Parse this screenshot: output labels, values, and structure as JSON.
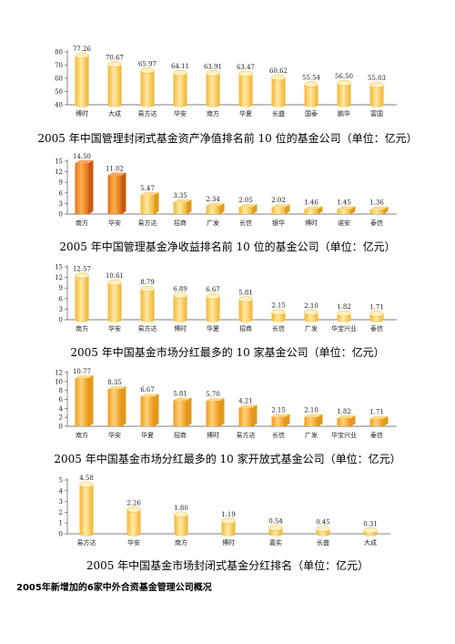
{
  "section_heading": "2005年新增加的6家中外合资基金管理公司概况",
  "chart_data": [
    {
      "type": "bar",
      "title": "2005 年中国管理封闭式基金资产净值排名前 10 位的基金公司（单位：亿元）",
      "categories": [
        "博时",
        "大成",
        "易方达",
        "华安",
        "南方",
        "华夏",
        "长盛",
        "国泰",
        "鹏华",
        "富国"
      ],
      "values": [
        77.26,
        70.67,
        65.97,
        64.11,
        63.91,
        63.47,
        60.62,
        55.54,
        56.5,
        55.03
      ],
      "value_labels": [
        "77.26",
        "70.67",
        "65.97",
        "64.11",
        "63.91",
        "63.47",
        "60.62",
        "55.54",
        "56.50",
        "55.03"
      ],
      "yticks": [
        40,
        50,
        60,
        70,
        80
      ],
      "ylim": [
        40,
        80
      ],
      "grid": false,
      "colors": {
        "bar": "#f7c64a"
      }
    },
    {
      "type": "bar",
      "title": "2005 年中国管理基金净收益排名前 10 位的基金公司（单位：亿元）",
      "categories": [
        "南方",
        "华安",
        "易方达",
        "招商",
        "广发",
        "长信",
        "银华",
        "博时",
        "诺安",
        "泰信"
      ],
      "values": [
        14.5,
        11.02,
        5.47,
        3.35,
        2.34,
        2.05,
        2.02,
        1.46,
        1.45,
        1.36
      ],
      "value_labels": [
        "14.50",
        "11.02",
        "5.47",
        "3.35",
        "2.34",
        "2.05",
        "2.02",
        "1.46",
        "1.45",
        "1.36"
      ],
      "yticks": [
        0,
        3,
        6,
        9,
        12,
        15
      ],
      "ylim": [
        0,
        15
      ],
      "grid": false,
      "colors": {
        "bar": "#f7c64a",
        "highlight": "#f08a1c"
      }
    },
    {
      "type": "bar",
      "title": "2005 年中国基金市场分红最多的 10 家基金公司（单位：亿元）",
      "categories": [
        "南方",
        "华安",
        "易方达",
        "博时",
        "华夏",
        "招商",
        "长信",
        "广发",
        "华宝兴业",
        "泰信"
      ],
      "values": [
        12.57,
        10.61,
        8.79,
        6.89,
        6.67,
        5.81,
        2.15,
        2.1,
        1.82,
        1.71
      ],
      "value_labels": [
        "12.57",
        "10.61",
        "8.79",
        "6.89",
        "6.67",
        "5.81",
        "2.15",
        "2.10",
        "1.82",
        "1.71"
      ],
      "yticks": [
        0,
        3,
        6,
        9,
        12,
        15
      ],
      "ylim": [
        0,
        15
      ],
      "grid": false,
      "colors": {
        "bar": "#f7c64a"
      }
    },
    {
      "type": "bar",
      "title": "2005 年中国基金市场分红最多的 10 家开放式基金公司（单位：亿元）",
      "categories": [
        "南方",
        "华安",
        "华夏",
        "招商",
        "博时",
        "易方达",
        "长信",
        "广发",
        "华宝兴业",
        "泰信"
      ],
      "values": [
        10.77,
        8.35,
        6.67,
        5.81,
        5.7,
        4.21,
        2.15,
        2.1,
        1.82,
        1.71
      ],
      "value_labels": [
        "10.77",
        "8.35",
        "6.67",
        "5.81",
        "5.70",
        "4.21",
        "2.15",
        "2.10",
        "1.82",
        "1.71"
      ],
      "yticks": [
        0,
        2,
        4,
        6,
        8,
        10,
        12
      ],
      "ylim": [
        0,
        12
      ],
      "grid": false,
      "colors": {
        "bar": "#f5a623"
      }
    },
    {
      "type": "bar",
      "title": "2005 年中国基金市场封闭式基金分红排名（单位：亿元）",
      "categories": [
        "易方达",
        "华安",
        "南方",
        "博时",
        "嘉实",
        "长盛",
        "大成"
      ],
      "values": [
        4.58,
        2.26,
        1.8,
        1.19,
        0.54,
        0.45,
        0.31
      ],
      "value_labels": [
        "4.58",
        "2.26",
        "1.80",
        "1.19",
        "0.54",
        "0.45",
        "0.31"
      ],
      "yticks": [
        0,
        1,
        2,
        3,
        4,
        5
      ],
      "ylim": [
        0,
        5
      ],
      "grid": false,
      "colors": {
        "bar": "#f7c64a"
      }
    }
  ]
}
